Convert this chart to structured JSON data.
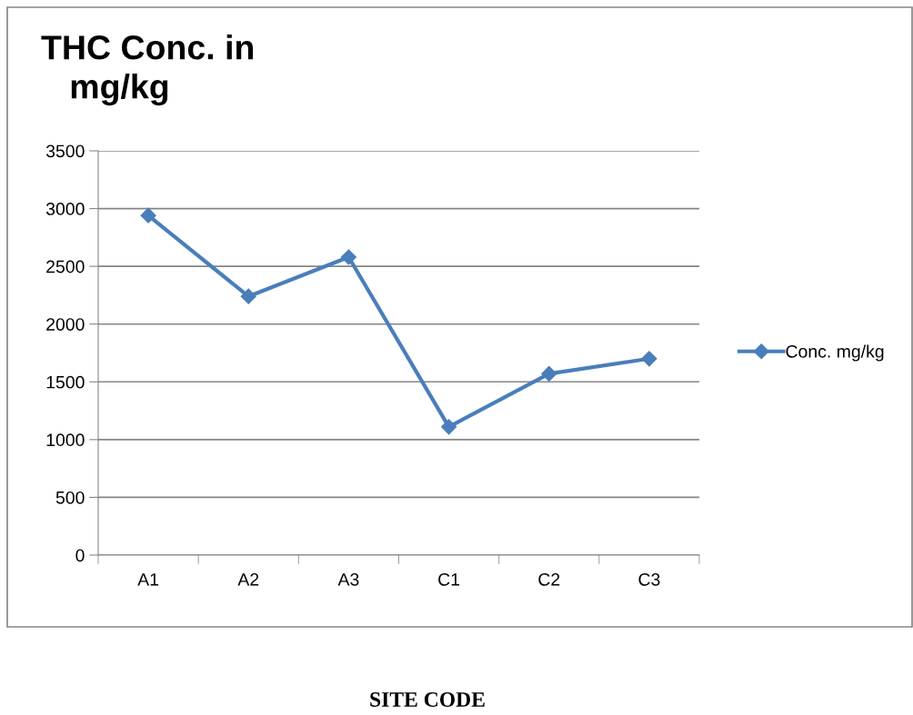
{
  "chart_data": {
    "type": "line",
    "title": "THC Conc. in\n   mg/kg",
    "annotations": [
      "SITE CODE"
    ],
    "categories": [
      "A1",
      "A2",
      "A3",
      "C1",
      "C2",
      "C3"
    ],
    "series": [
      {
        "name": "Conc. mg/kg",
        "color": "#4a7ebb",
        "values": [
          2940,
          2240,
          2580,
          1110,
          1570,
          1700
        ]
      }
    ],
    "ylim": [
      0,
      3500
    ],
    "yticks": [
      0,
      500,
      1000,
      1500,
      2000,
      2500,
      3000,
      3500
    ],
    "grid": "y",
    "legend": "right",
    "marker": "diamond",
    "line_style": "solid"
  }
}
